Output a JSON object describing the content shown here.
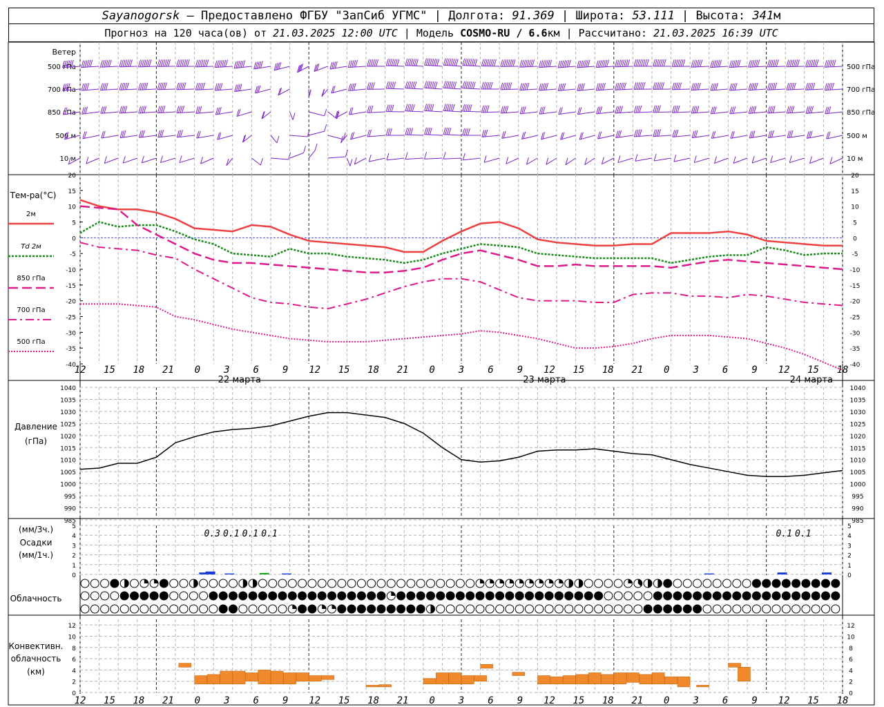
{
  "header": {
    "station": "Sayanogorsk",
    "provider": " — Предоставлено ФГБУ \"ЗапСиб УГМС\" | Долгота: ",
    "lon": "91.369",
    "lat_label": " | Широта: ",
    "lat": "53.111",
    "alt_label": " | Высота: ",
    "alt": "341",
    "alt_unit": "м",
    "forecast_prefix": "Прогноз на 120 часа(ов) от ",
    "run_time": "21.03.2025 12:00 UTC",
    "model_prefix": " | Модель ",
    "model": "COSMO-RU / 6.6",
    "model_unit": "км",
    "calc_prefix": " | Рассчитано: ",
    "calc_time": "21.03.2025 16:39 UTC"
  },
  "hour_ticks": [
    "12",
    "15",
    "18",
    "21",
    "0",
    "3",
    "6",
    "9",
    "12",
    "15",
    "18",
    "21",
    "0",
    "3",
    "6",
    "9",
    "12",
    "15",
    "18",
    "21",
    "0",
    "3",
    "6",
    "9",
    "12",
    "15",
    "18"
  ],
  "day_labels": [
    "22 марта",
    "23 марта",
    "24 марта"
  ],
  "colors": {
    "wind": "#7a22cc",
    "t2m": "#ee4040",
    "td": "#178a17",
    "t850": "#dd1a8a",
    "t700": "#dd1a8a",
    "t500": "#dd1a8a",
    "pressure": "#000000",
    "precip": "#1a3ad6",
    "precip_green": "#18a018",
    "conv": "#f0892c",
    "zero_line": "#4444ff",
    "grid": "#b4b4b4"
  },
  "chart_data": [
    {
      "type": "wind_barbs",
      "title": "Ветер",
      "levels": [
        "500 гПа",
        "700 гПа",
        "850 гПа",
        "500 м",
        "10 м"
      ],
      "x_hours": [
        0,
        3,
        6,
        9,
        12,
        15,
        18,
        21,
        24,
        27,
        30,
        33,
        36,
        39,
        42,
        45,
        48,
        51,
        54,
        57,
        60,
        63,
        66,
        69,
        72,
        75,
        78,
        81,
        84,
        87,
        90,
        93,
        96,
        99,
        102,
        105,
        108,
        111,
        114,
        117,
        120
      ],
      "speed_ms": {
        "500 гПа": [
          28,
          30,
          32,
          33,
          34,
          35,
          36,
          36,
          34,
          30,
          26,
          22,
          18,
          16,
          20,
          26,
          30,
          34,
          36,
          40,
          44,
          44,
          42,
          40,
          38,
          36,
          34,
          34,
          36,
          38,
          38,
          36,
          34,
          30,
          28,
          28,
          30,
          32,
          34,
          34,
          32
        ],
        "700 гПа": [
          18,
          20,
          22,
          24,
          24,
          25,
          25,
          24,
          22,
          18,
          14,
          10,
          8,
          8,
          12,
          18,
          22,
          26,
          30,
          34,
          36,
          34,
          30,
          28,
          26,
          24,
          22,
          22,
          24,
          28,
          30,
          28,
          26,
          24,
          22,
          22,
          24,
          26,
          26,
          26,
          24
        ],
        "850 гПа": [
          12,
          14,
          16,
          18,
          18,
          18,
          18,
          16,
          14,
          10,
          8,
          6,
          5,
          6,
          8,
          12,
          16,
          20,
          24,
          26,
          28,
          26,
          22,
          18,
          16,
          14,
          12,
          12,
          14,
          18,
          22,
          22,
          20,
          18,
          16,
          16,
          18,
          20,
          20,
          18,
          16
        ],
        "500 м": [
          8,
          10,
          12,
          14,
          14,
          14,
          13,
          12,
          10,
          8,
          6,
          5,
          4,
          5,
          6,
          8,
          12,
          16,
          18,
          20,
          22,
          20,
          16,
          12,
          10,
          8,
          8,
          8,
          10,
          14,
          18,
          18,
          16,
          14,
          12,
          12,
          14,
          16,
          16,
          14,
          12
        ],
        "10 м": [
          4,
          5,
          6,
          6,
          6,
          5,
          5,
          5,
          4,
          4,
          3,
          3,
          2,
          3,
          3,
          4,
          5,
          6,
          6,
          7,
          7,
          6,
          5,
          4,
          4,
          3,
          3,
          3,
          4,
          5,
          6,
          6,
          5,
          5,
          4,
          4,
          5,
          5,
          5,
          5,
          4
        ]
      },
      "direction_deg": {
        "500 гПа": [
          260,
          262,
          264,
          266,
          266,
          268,
          268,
          266,
          262,
          256,
          250,
          240,
          220,
          230,
          250,
          262,
          270,
          274,
          276,
          278,
          278,
          276,
          272,
          268,
          264,
          262,
          260,
          260,
          262,
          266,
          270,
          270,
          268,
          264,
          262,
          262,
          264,
          266,
          266,
          266,
          264
        ],
        "700 гПа": [
          258,
          260,
          262,
          264,
          264,
          266,
          266,
          264,
          260,
          252,
          240,
          220,
          180,
          200,
          240,
          258,
          268,
          274,
          276,
          278,
          278,
          276,
          270,
          266,
          262,
          260,
          258,
          258,
          260,
          264,
          268,
          268,
          266,
          262,
          260,
          260,
          262,
          264,
          264,
          264,
          262
        ],
        "850 гПа": [
          250,
          254,
          258,
          260,
          260,
          262,
          262,
          258,
          250,
          236,
          210,
          170,
          120,
          150,
          220,
          250,
          264,
          272,
          276,
          278,
          278,
          274,
          266,
          260,
          256,
          254,
          252,
          252,
          256,
          260,
          264,
          266,
          264,
          260,
          256,
          256,
          258,
          260,
          260,
          258,
          256
        ],
        "500 м": [
          240,
          246,
          250,
          252,
          254,
          256,
          256,
          250,
          238,
          210,
          160,
          100,
          60,
          120,
          200,
          240,
          260,
          270,
          274,
          276,
          276,
          270,
          258,
          248,
          242,
          240,
          238,
          238,
          244,
          252,
          260,
          262,
          258,
          252,
          248,
          248,
          250,
          252,
          252,
          248,
          244
        ],
        "10 м": [
          220,
          226,
          230,
          232,
          234,
          236,
          236,
          226,
          200,
          150,
          100,
          50,
          20,
          80,
          170,
          220,
          244,
          256,
          262,
          264,
          264,
          256,
          238,
          224,
          218,
          216,
          214,
          214,
          222,
          236,
          248,
          250,
          244,
          236,
          230,
          230,
          232,
          236,
          236,
          230,
          224
        ]
      }
    },
    {
      "type": "line",
      "title": "Тем-ра(°C)",
      "x_hours": [
        0,
        3,
        6,
        9,
        12,
        15,
        18,
        21,
        24,
        27,
        30,
        33,
        36,
        39,
        42,
        45,
        48,
        51,
        54,
        57,
        60,
        63,
        66,
        69,
        72,
        75,
        78,
        81,
        84,
        87,
        90,
        93,
        96,
        99,
        102,
        105,
        108,
        111,
        114,
        117,
        120
      ],
      "ylim": [
        -40,
        20
      ],
      "series": [
        {
          "name": "2м",
          "style": "solid",
          "values": [
            12,
            10,
            9,
            9,
            8,
            6,
            3,
            2.5,
            2,
            4,
            3.5,
            1,
            -1,
            -1.5,
            -2,
            -2.5,
            -3,
            -4.5,
            -4.5,
            -1,
            2,
            4.5,
            5,
            3,
            -0.5,
            -1.5,
            -2,
            -2.5,
            -2.5,
            -2,
            -2,
            1.5,
            1.5,
            1.5,
            2,
            1,
            -1,
            -1.5,
            -2,
            -2.5,
            -2.5
          ]
        },
        {
          "name": "Td 2м",
          "style": "dots",
          "values": [
            1.5,
            5,
            3.5,
            4,
            4,
            2,
            -0.5,
            -2,
            -5,
            -5.5,
            -6,
            -3.5,
            -5,
            -5,
            -6,
            -6.5,
            -7,
            -8,
            -7,
            -5,
            -3.5,
            -2,
            -2.5,
            -3,
            -5,
            -5.5,
            -6,
            -6.5,
            -6.5,
            -6.5,
            -6.5,
            -8,
            -7,
            -6,
            -5.5,
            -5.5,
            -3,
            -4,
            -5.5,
            -5,
            -5
          ]
        },
        {
          "name": "850 гПа",
          "style": "longdash",
          "values": [
            10,
            9.5,
            9,
            4,
            1,
            -2,
            -5,
            -7,
            -8,
            -8,
            -8.5,
            -9,
            -9.5,
            -10,
            -10.5,
            -11,
            -11,
            -10.5,
            -9.5,
            -7,
            -5,
            -4,
            -5.5,
            -7,
            -9,
            -9,
            -8.5,
            -9,
            -9,
            -9,
            -9,
            -9.5,
            -8.5,
            -7.5,
            -7,
            -7.5,
            -8,
            -8.5,
            -9,
            -9.5,
            -10
          ]
        },
        {
          "name": "700 гПа",
          "style": "dashdot",
          "values": [
            -1.5,
            -3,
            -3.5,
            -4,
            -5.5,
            -6.5,
            -10,
            -13,
            -16,
            -19,
            -20.5,
            -21,
            -22,
            -22.5,
            -21,
            -19.5,
            -17.5,
            -15.5,
            -14,
            -13,
            -13,
            -14,
            -16.5,
            -19,
            -20,
            -20,
            -20,
            -20.5,
            -20.5,
            -18,
            -17.5,
            -17.5,
            -18.5,
            -18.5,
            -19,
            -18,
            -18.5,
            -19.5,
            -20.5,
            -21,
            -21.5
          ]
        },
        {
          "name": "500 гПа",
          "style": "dotted",
          "values": [
            -21,
            -21,
            -21,
            -21.5,
            -22,
            -25,
            -26,
            -27.5,
            -29,
            -30,
            -31,
            -32,
            -32.5,
            -33,
            -33,
            -33,
            -32.5,
            -32,
            -31.5,
            -31,
            -30.5,
            -29.5,
            -30,
            -31,
            -32,
            -33.5,
            -35,
            -35,
            -34.5,
            -33.5,
            -32,
            -31,
            -31,
            -31,
            -31.5,
            -32,
            -33.5,
            -35,
            -37,
            -39.5,
            -42
          ]
        }
      ]
    },
    {
      "type": "line",
      "title": "Давление",
      "ylabel": "(гПа)",
      "x_hours": [
        0,
        3,
        6,
        9,
        12,
        15,
        18,
        21,
        24,
        27,
        30,
        33,
        36,
        39,
        42,
        45,
        48,
        51,
        54,
        57,
        60,
        63,
        66,
        69,
        72,
        75,
        78,
        81,
        84,
        87,
        90,
        93,
        96,
        99,
        102,
        105,
        108,
        111,
        114,
        117,
        120
      ],
      "ylim": [
        985,
        1040
      ],
      "series": [
        {
          "name": "Давление",
          "values": [
            1006,
            1006.5,
            1008.5,
            1008.5,
            1011,
            1017,
            1019.5,
            1021.5,
            1022.5,
            1023,
            1024,
            1026,
            1028,
            1029.5,
            1029.5,
            1028.5,
            1027.5,
            1025,
            1021,
            1015,
            1010,
            1009,
            1009.5,
            1011,
            1013.5,
            1014,
            1014,
            1014.5,
            1013.5,
            1012.5,
            1012,
            1010,
            1008,
            1006.5,
            1005,
            1003.5,
            1003,
            1003,
            1003.5,
            1004.5,
            1005.5
          ]
        }
      ]
    },
    {
      "type": "bar",
      "title": "Осадки",
      "ylabel_top": "(мм/3ч.)",
      "ylabel_bottom": "(мм/1ч.)",
      "ylim": [
        0,
        5
      ],
      "labels": [
        {
          "hour": 21,
          "text": "0.3"
        },
        {
          "hour": 24,
          "text": "0.1"
        },
        {
          "hour": 27,
          "text": "0.1"
        },
        {
          "hour": 30,
          "text": "0.1"
        },
        {
          "hour": 111,
          "text": "0.1"
        },
        {
          "hour": 114,
          "text": "0.1"
        }
      ],
      "bars": [
        {
          "hour": 19.5,
          "value": 0.2,
          "color": "blue"
        },
        {
          "hour": 20.5,
          "value": 0.3,
          "color": "blue"
        },
        {
          "hour": 23.5,
          "value": 0.1,
          "color": "blue"
        },
        {
          "hour": 29,
          "value": 0.15,
          "color": "green"
        },
        {
          "hour": 32.5,
          "value": 0.1,
          "color": "blue"
        },
        {
          "hour": 99,
          "value": 0.1,
          "color": "blue"
        },
        {
          "hour": 110.5,
          "value": 0.2,
          "color": "blue"
        },
        {
          "hour": 117.5,
          "value": 0.2,
          "color": "blue"
        }
      ]
    },
    {
      "type": "table",
      "title": "Облачность",
      "x_hours_step": 1.5,
      "rows": [
        "000840228004000044000000000000000000000022222222244000023448000000008888888888888888888888888888888888888000000000000000000000008800000000000000000000000000000000000000000000000000000000000000000000000000000000000000000000000000000000000000000000000000000000000000000000000000",
        "000088888000088888888888888888828888888888888888888880000088888888888888888888888888888888888888888888888888888888888888888888888888888888888888888888888888888888888888888888888888888888888888888888888888888888888888888888888888888888888888888888888888888888888888888888",
        "000000000000008800000288228888888884000000000000000000000888888000000000000000000000000000000000000000000000000000000000000000000000000000000000000000000000000000000000000000000000000000000000000000000000000000000000000000000000000000000000000000000000000000000000000000"
      ]
    },
    {
      "type": "bar",
      "title": "Конвективн. облачность",
      "ylabel": "(км)",
      "ylim": [
        0,
        13
      ],
      "ranges": [
        {
          "hour": 16.5,
          "from": 4.5,
          "to": 5.2
        },
        {
          "hour": 19,
          "from": 1.5,
          "to": 3
        },
        {
          "hour": 21,
          "from": 1.5,
          "to": 3.2
        },
        {
          "hour": 23,
          "from": 1.5,
          "to": 3.8
        },
        {
          "hour": 25,
          "from": 1.5,
          "to": 3.8
        },
        {
          "hour": 27,
          "from": 2,
          "to": 3.5
        },
        {
          "hour": 29,
          "from": 1.5,
          "to": 4
        },
        {
          "hour": 31,
          "from": 1.5,
          "to": 3.8
        },
        {
          "hour": 33,
          "from": 1.5,
          "to": 3.5
        },
        {
          "hour": 35,
          "from": 2,
          "to": 3.5
        },
        {
          "hour": 37,
          "from": 2,
          "to": 3
        },
        {
          "hour": 39,
          "from": 2.3,
          "to": 3
        },
        {
          "hour": 46,
          "from": 1,
          "to": 1.3
        },
        {
          "hour": 48,
          "from": 1,
          "to": 1.4
        },
        {
          "hour": 55,
          "from": 1.5,
          "to": 2.5
        },
        {
          "hour": 57,
          "from": 1.5,
          "to": 3.5
        },
        {
          "hour": 59,
          "from": 1.5,
          "to": 3.5
        },
        {
          "hour": 61,
          "from": 1.5,
          "to": 3
        },
        {
          "hour": 63,
          "from": 2,
          "to": 3
        },
        {
          "hour": 64,
          "from": 4.3,
          "to": 5
        },
        {
          "hour": 69,
          "from": 3,
          "to": 3.6
        },
        {
          "hour": 73,
          "from": 1.5,
          "to": 3
        },
        {
          "hour": 75,
          "from": 1.5,
          "to": 2.8
        },
        {
          "hour": 77,
          "from": 1.5,
          "to": 3
        },
        {
          "hour": 79,
          "from": 1.5,
          "to": 3.2
        },
        {
          "hour": 81,
          "from": 1.5,
          "to": 3.5
        },
        {
          "hour": 83,
          "from": 1.5,
          "to": 3.2
        },
        {
          "hour": 85,
          "from": 1.5,
          "to": 3.5
        },
        {
          "hour": 87,
          "from": 1.8,
          "to": 3.5
        },
        {
          "hour": 89,
          "from": 1.5,
          "to": 3.2
        },
        {
          "hour": 91,
          "from": 1.5,
          "to": 3.5
        },
        {
          "hour": 93,
          "from": 1.5,
          "to": 2.8
        },
        {
          "hour": 95,
          "from": 1,
          "to": 2.8
        },
        {
          "hour": 98,
          "from": 1,
          "to": 1.3
        },
        {
          "hour": 103,
          "from": 4.5,
          "to": 5.2
        },
        {
          "hour": 104.5,
          "from": 2,
          "to": 4.5
        }
      ]
    }
  ]
}
